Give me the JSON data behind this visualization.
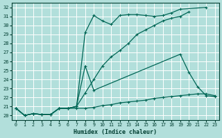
{
  "xlabel": "Humidex (Indice chaleur)",
  "background_color": "#b2dfdb",
  "grid_color": "#ffffff",
  "line_color": "#006655",
  "xlim": [
    -0.5,
    23.5
  ],
  "ylim": [
    19.5,
    32.5
  ],
  "xticks": [
    0,
    1,
    2,
    3,
    4,
    5,
    6,
    7,
    8,
    9,
    10,
    11,
    12,
    13,
    14,
    15,
    16,
    17,
    18,
    19,
    20,
    21,
    22,
    23
  ],
  "yticks": [
    20,
    21,
    22,
    23,
    24,
    25,
    26,
    27,
    28,
    29,
    30,
    31,
    32
  ],
  "line_bottom_x": [
    0,
    1,
    2,
    3,
    4,
    5,
    6,
    7,
    8,
    9,
    10,
    11,
    12,
    13,
    14,
    15,
    16,
    17,
    18,
    19,
    20,
    21,
    22,
    23
  ],
  "line_bottom_y": [
    20.8,
    20.0,
    20.2,
    20.1,
    20.1,
    20.8,
    20.8,
    20.8,
    20.8,
    20.9,
    21.1,
    21.2,
    21.4,
    21.5,
    21.6,
    21.7,
    21.9,
    22.0,
    22.1,
    22.2,
    22.3,
    22.4,
    22.4,
    22.2
  ],
  "line_diag_x": [
    0,
    1,
    2,
    3,
    4,
    5,
    6,
    7,
    8,
    9,
    10,
    11,
    12,
    13,
    14,
    15,
    16,
    17,
    18,
    19,
    20,
    21,
    22,
    23
  ],
  "line_diag_y": [
    20.8,
    20.0,
    20.2,
    20.1,
    20.1,
    20.8,
    20.8,
    21.0,
    22.5,
    24.0,
    25.5,
    26.5,
    27.2,
    28.0,
    29.0,
    29.5,
    30.0,
    30.5,
    30.8,
    31.0,
    31.5,
    null,
    null,
    null
  ],
  "line_mid_x": [
    0,
    1,
    2,
    3,
    4,
    5,
    6,
    7,
    8,
    9,
    19,
    20,
    21,
    22,
    23
  ],
  "line_mid_y": [
    20.8,
    20.0,
    20.2,
    20.1,
    20.1,
    20.8,
    20.8,
    21.0,
    25.5,
    22.8,
    26.8,
    24.8,
    23.2,
    22.2,
    22.1
  ],
  "line_top_x": [
    0,
    1,
    2,
    3,
    4,
    5,
    6,
    7,
    8,
    9,
    10,
    11,
    12,
    13,
    14,
    15,
    16,
    17,
    18,
    19,
    20,
    22
  ],
  "line_top_y": [
    20.8,
    20.0,
    20.2,
    20.1,
    20.1,
    20.8,
    20.8,
    21.0,
    29.2,
    31.1,
    30.5,
    30.1,
    31.1,
    31.2,
    31.2,
    31.1,
    31.0,
    31.1,
    31.4,
    31.8,
    null,
    32.0
  ]
}
